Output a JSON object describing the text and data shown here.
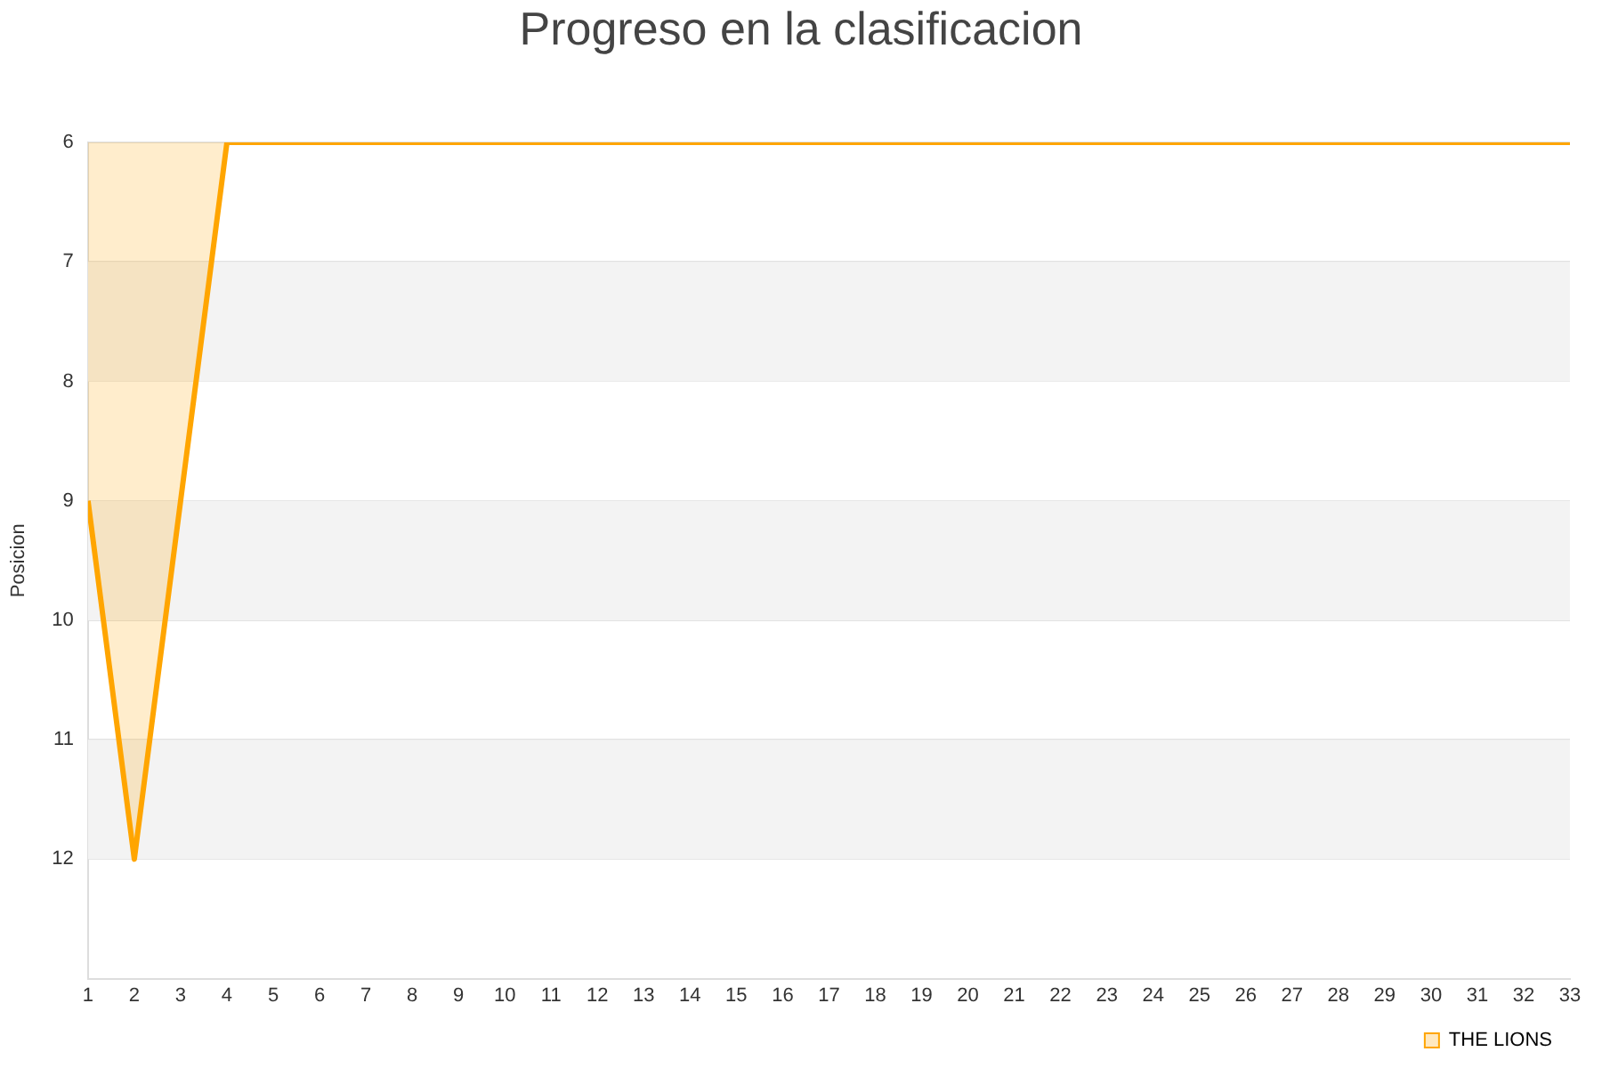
{
  "chart_data": {
    "type": "area",
    "title": "Progreso en la clasificacion",
    "ylabel": "Posicion",
    "x": [
      1,
      2,
      3,
      4,
      5,
      6,
      7,
      8,
      9,
      10,
      11,
      12,
      13,
      14,
      15,
      16,
      17,
      18,
      19,
      20,
      21,
      22,
      23,
      24,
      25,
      26,
      27,
      28,
      29,
      30,
      31,
      32,
      33
    ],
    "series": [
      {
        "name": "THE LIONS",
        "color": "#ffa500",
        "values": [
          9,
          12,
          9,
          6,
          6,
          6,
          6,
          6,
          6,
          6,
          6,
          6,
          6,
          6,
          6,
          6,
          6,
          6,
          6,
          6,
          6,
          6,
          6,
          6,
          6,
          6,
          6,
          6,
          6,
          6,
          6,
          6,
          6
        ]
      }
    ],
    "xlim": [
      1,
      33
    ],
    "xticks": [
      1,
      2,
      3,
      4,
      5,
      6,
      7,
      8,
      9,
      10,
      11,
      12,
      13,
      14,
      15,
      16,
      17,
      18,
      19,
      20,
      21,
      22,
      23,
      24,
      25,
      26,
      27,
      28,
      29,
      30,
      31,
      32,
      33
    ],
    "ylim": [
      13,
      6
    ],
    "yticks": [
      6,
      7,
      8,
      9,
      10,
      11,
      12
    ],
    "grid": "y",
    "legend": "bottom right",
    "marker": "none",
    "line_style": "solid"
  }
}
